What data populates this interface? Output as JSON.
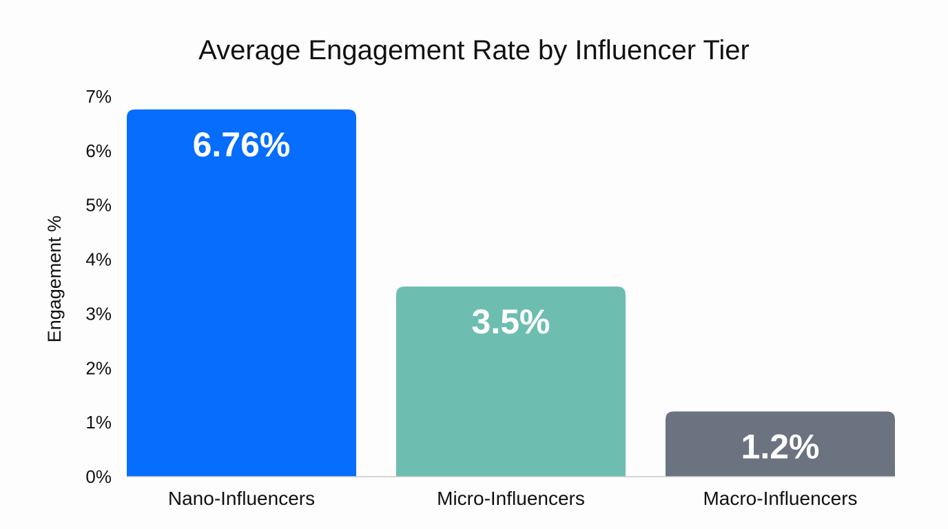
{
  "chart_data": {
    "type": "bar",
    "title": "Average Engagement Rate by Influencer Tier",
    "xlabel": "",
    "ylabel": "Engagement %",
    "categories": [
      "Nano-Influencers",
      "Micro-Influencers",
      "Macro-Influencers"
    ],
    "values": [
      6.76,
      3.5,
      1.2
    ],
    "data_labels": [
      "6.76%",
      "3.5%",
      "1.2%"
    ],
    "colors": [
      "#066DFD",
      "#6DBEB1",
      "#6B7280"
    ],
    "ylim": [
      0,
      7
    ],
    "yticks": [
      0,
      1,
      2,
      3,
      4,
      5,
      6,
      7
    ],
    "ytick_labels": [
      "0%",
      "1%",
      "2%",
      "3%",
      "4%",
      "5%",
      "6%",
      "7%"
    ],
    "grid": false,
    "legend": "none"
  }
}
